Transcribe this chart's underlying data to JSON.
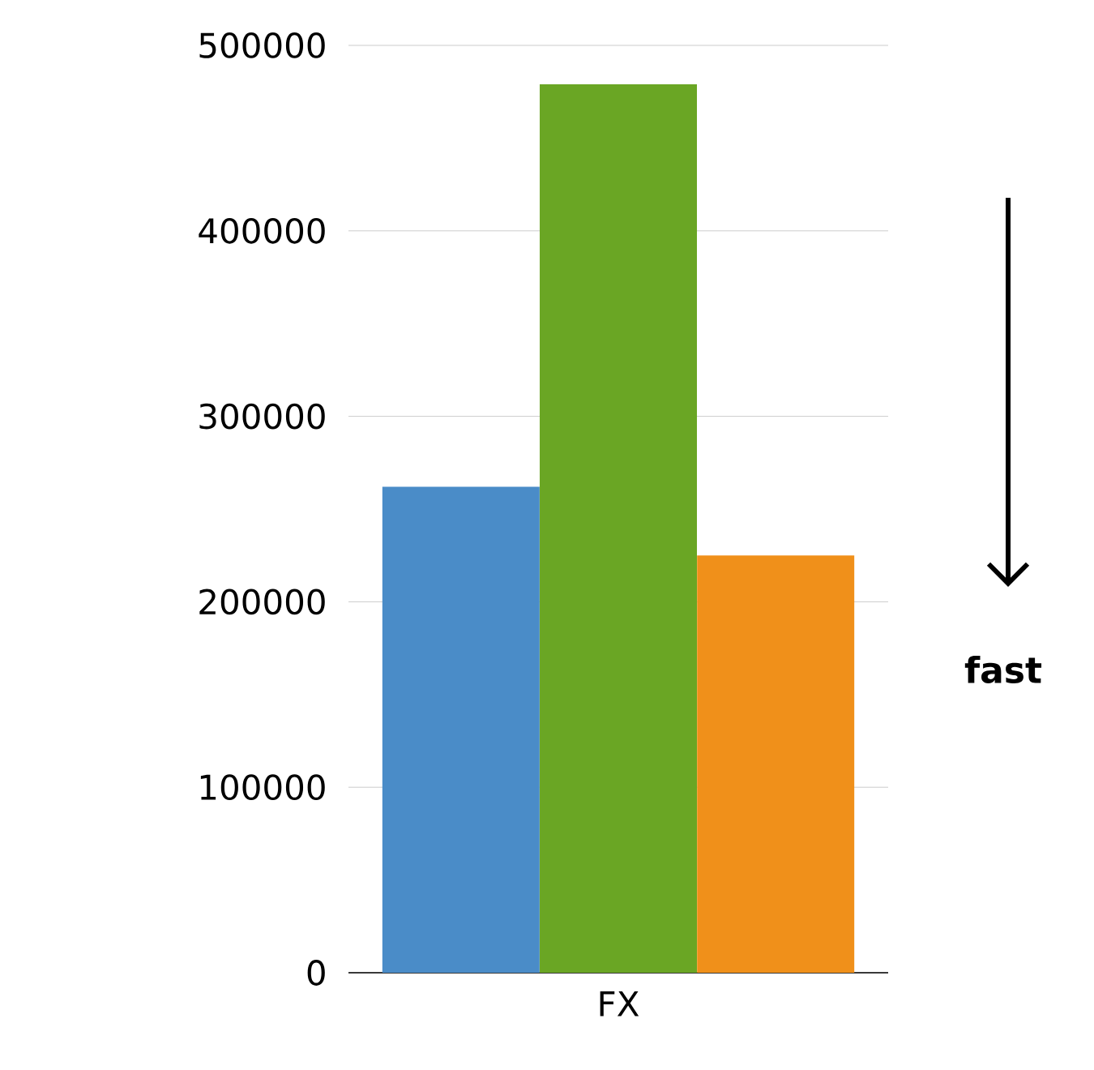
{
  "chart_data": {
    "type": "bar",
    "categories": [
      null,
      "FX",
      null
    ],
    "values": [
      262000,
      479000,
      225000
    ],
    "colors": [
      "#4a8cc8",
      "#6aa624",
      "#f0901a"
    ],
    "ylim": [
      0,
      500000
    ],
    "yticks": [
      0,
      100000,
      200000,
      300000,
      400000,
      500000
    ],
    "grid": "y",
    "annotations": [
      "fast"
    ]
  }
}
